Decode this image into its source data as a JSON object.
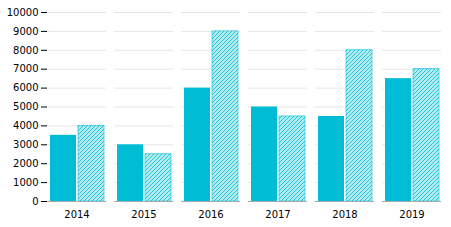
{
  "chart_data": {
    "type": "bar",
    "categories": [
      "2014",
      "2015",
      "2016",
      "2017",
      "2018",
      "2019"
    ],
    "series": [
      {
        "color": "#00BCD4",
        "values": [
          3500,
          3000,
          6000,
          5000,
          4500,
          6500
        ]
      },
      {
        "color": "#00BCD4",
        "values": [
          4000,
          2500,
          9000,
          4500,
          8000,
          7000
        ]
      }
    ],
    "ylim": [
      0,
      10000
    ],
    "yticks": [
      0,
      1000,
      2000,
      3000,
      4000,
      5000,
      6000,
      7000,
      8000,
      9000,
      10000
    ],
    "grid": true
  }
}
